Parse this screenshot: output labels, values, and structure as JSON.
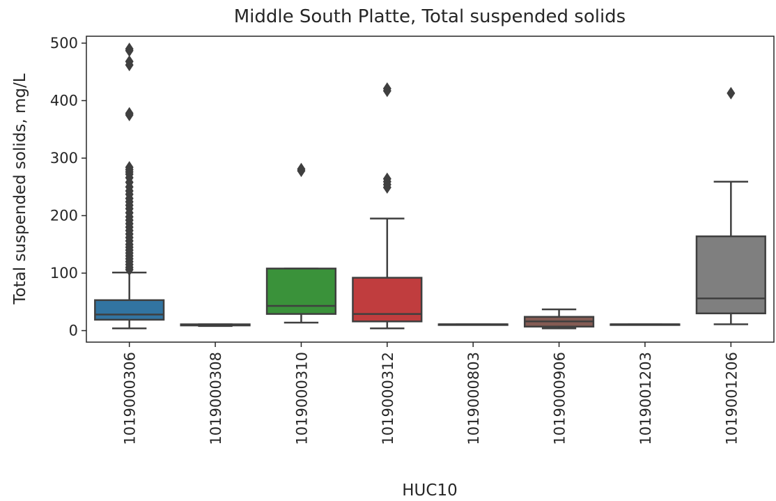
{
  "chart_data": {
    "type": "box",
    "title": "Middle South Platte, Total suspended solids",
    "xlabel": "HUC10",
    "ylabel": "Total suspended solids, mg/L",
    "ylim": [
      -20,
      512
    ],
    "yticks": [
      0,
      100,
      200,
      300,
      400,
      500
    ],
    "grid": false,
    "categories": [
      "1019000306",
      "1019000308",
      "1019000310",
      "1019000312",
      "1019000803",
      "1019000906",
      "1019001203",
      "1019001206"
    ],
    "colors": [
      "#3274a1",
      "#e1812c",
      "#3a923a",
      "#c03d3e",
      "#9372b2",
      "#845b53",
      "#d684bd",
      "#7f7f7f"
    ],
    "boxes": [
      {
        "min": 4,
        "q1": 19,
        "median": 28,
        "q3": 53,
        "max": 101,
        "outliers": [
          490,
          487,
          468,
          462,
          378,
          375,
          284,
          280,
          276,
          272,
          266,
          258,
          250,
          243,
          237,
          230,
          224,
          218,
          212,
          205,
          198,
          192,
          186,
          180,
          174,
          168,
          162,
          156,
          150,
          145,
          140,
          135,
          130,
          125,
          120,
          115,
          110,
          106
        ]
      },
      {
        "min": 8,
        "q1": 9,
        "median": 10,
        "q3": 11,
        "max": 11,
        "outliers": []
      },
      {
        "min": 14,
        "q1": 29,
        "median": 43,
        "q3": 108,
        "max": 108,
        "outliers": [
          281,
          278
        ]
      },
      {
        "min": 4,
        "q1": 16,
        "median": 29,
        "q3": 92,
        "max": 195,
        "outliers": [
          421,
          417,
          264,
          259,
          254,
          249
        ]
      },
      {
        "min": 11,
        "q1": 11,
        "median": 11,
        "q3": 11,
        "max": 11,
        "outliers": []
      },
      {
        "min": 4,
        "q1": 7,
        "median": 16,
        "q3": 24,
        "max": 37,
        "outliers": []
      },
      {
        "min": 11,
        "q1": 11,
        "median": 11,
        "q3": 11,
        "max": 11,
        "outliers": []
      },
      {
        "min": 11,
        "q1": 30,
        "median": 56,
        "q3": 164,
        "max": 259,
        "outliers": [
          413
        ]
      }
    ]
  }
}
